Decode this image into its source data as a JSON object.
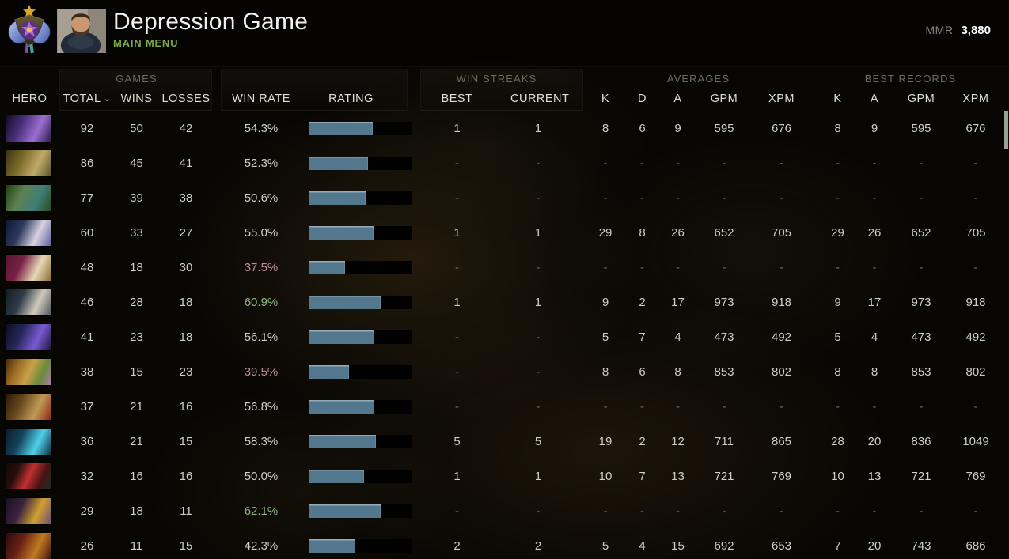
{
  "header": {
    "title": "Depression Game",
    "subtitle": "MAIN MENU",
    "mmr_label": "MMR",
    "mmr_value": "3,880"
  },
  "table": {
    "groups": {
      "games": "GAMES",
      "win_streaks": "WIN STREAKS",
      "averages": "AVERAGES",
      "best_records": "BEST RECORDS"
    },
    "columns": {
      "hero": "HERO",
      "total": "TOTAL",
      "sort_icon": "⌄",
      "wins": "WINS",
      "losses": "LOSSES",
      "win_rate": "WIN RATE",
      "rating": "RATING",
      "best": "BEST",
      "current": "CURRENT",
      "k": "K",
      "d": "D",
      "a": "A",
      "gpm": "GPM",
      "xpm": "XPM"
    },
    "rows": [
      {
        "hero": "faceless-void",
        "hero_colors": [
          "#120b26",
          "#4a2f7a",
          "#9a6fd0",
          "#2a1a4a"
        ],
        "total": "92",
        "wins": "50",
        "losses": "42",
        "win_rate": "54.3%",
        "win_rate_color": "normal",
        "bar_pct": 62,
        "best": "1",
        "current": "1",
        "k": "8",
        "d": "6",
        "a": "9",
        "gpm": "595",
        "xpm": "676",
        "rk": "8",
        "ra": "9",
        "rgpm": "595",
        "rxpm": "676"
      },
      {
        "hero": "pudge",
        "hero_colors": [
          "#3a3414",
          "#7a6a2a",
          "#c0aa6a",
          "#56512a"
        ],
        "total": "86",
        "wins": "45",
        "losses": "41",
        "win_rate": "52.3%",
        "win_rate_color": "normal",
        "bar_pct": 58,
        "best": "-",
        "current": "-",
        "k": "-",
        "d": "-",
        "a": "-",
        "gpm": "-",
        "xpm": "-",
        "rk": "-",
        "ra": "-",
        "rgpm": "-",
        "rxpm": "-"
      },
      {
        "hero": "natures-prophet",
        "hero_colors": [
          "#24400f",
          "#5d8050",
          "#3f7f78",
          "#2c4a1d"
        ],
        "total": "77",
        "wins": "39",
        "losses": "38",
        "win_rate": "50.6%",
        "win_rate_color": "normal",
        "bar_pct": 55,
        "best": "-",
        "current": "-",
        "k": "-",
        "d": "-",
        "a": "-",
        "gpm": "-",
        "xpm": "-",
        "rk": "-",
        "ra": "-",
        "rgpm": "-",
        "rxpm": "-"
      },
      {
        "hero": "mirana",
        "hero_colors": [
          "#0e1830",
          "#2c3a5e",
          "#d9d2e2",
          "#5a5d9a"
        ],
        "total": "60",
        "wins": "33",
        "losses": "27",
        "win_rate": "55.0%",
        "win_rate_color": "normal",
        "bar_pct": 63,
        "best": "1",
        "current": "1",
        "k": "29",
        "d": "8",
        "a": "26",
        "gpm": "652",
        "xpm": "705",
        "rk": "29",
        "ra": "26",
        "rgpm": "652",
        "rxpm": "705"
      },
      {
        "hero": "invoker",
        "hero_colors": [
          "#55152f",
          "#7a2244",
          "#e8d8b8",
          "#8a6a2a"
        ],
        "total": "48",
        "wins": "18",
        "losses": "30",
        "win_rate": "37.5%",
        "win_rate_color": "red",
        "bar_pct": 35,
        "best": "-",
        "current": "-",
        "k": "-",
        "d": "-",
        "a": "-",
        "gpm": "-",
        "xpm": "-",
        "rk": "-",
        "ra": "-",
        "rgpm": "-",
        "rxpm": "-"
      },
      {
        "hero": "juggernaut",
        "hero_colors": [
          "#131c24",
          "#2e3c48",
          "#cfc9bb",
          "#4a5258"
        ],
        "total": "46",
        "wins": "28",
        "losses": "18",
        "win_rate": "60.9%",
        "win_rate_color": "green",
        "bar_pct": 70,
        "best": "1",
        "current": "1",
        "k": "9",
        "d": "2",
        "a": "17",
        "gpm": "973",
        "xpm": "918",
        "rk": "9",
        "ra": "17",
        "rgpm": "973",
        "rxpm": "918"
      },
      {
        "hero": "enigma",
        "hero_colors": [
          "#0d0d22",
          "#26265a",
          "#7a5ad0",
          "#1c1440"
        ],
        "total": "41",
        "wins": "23",
        "losses": "18",
        "win_rate": "56.1%",
        "win_rate_color": "normal",
        "bar_pct": 64,
        "best": "-",
        "current": "-",
        "k": "5",
        "d": "7",
        "a": "4",
        "gpm": "473",
        "xpm": "492",
        "rk": "5",
        "ra": "4",
        "rgpm": "473",
        "rxpm": "492"
      },
      {
        "hero": "alchemist",
        "hero_colors": [
          "#4a2a0c",
          "#9a6a22",
          "#caa04a",
          "#6a8a3a",
          "#b07ab0"
        ],
        "total": "38",
        "wins": "15",
        "losses": "23",
        "win_rate": "39.5%",
        "win_rate_color": "red",
        "bar_pct": 39,
        "best": "-",
        "current": "-",
        "k": "8",
        "d": "6",
        "a": "8",
        "gpm": "853",
        "xpm": "802",
        "rk": "8",
        "ra": "8",
        "rgpm": "853",
        "rxpm": "802"
      },
      {
        "hero": "earthshaker",
        "hero_colors": [
          "#2c1a08",
          "#6a4a1e",
          "#c09a55",
          "#8a2418"
        ],
        "total": "37",
        "wins": "21",
        "losses": "16",
        "win_rate": "56.8%",
        "win_rate_color": "normal",
        "bar_pct": 64,
        "best": "-",
        "current": "-",
        "k": "-",
        "d": "-",
        "a": "-",
        "gpm": "-",
        "xpm": "-",
        "rk": "-",
        "ra": "-",
        "rgpm": "-",
        "rxpm": "-"
      },
      {
        "hero": "storm-spirit",
        "hero_colors": [
          "#0a1c2a",
          "#15445c",
          "#4fd0e8",
          "#0e2a3c"
        ],
        "total": "36",
        "wins": "21",
        "losses": "15",
        "win_rate": "58.3%",
        "win_rate_color": "normal",
        "bar_pct": 65,
        "best": "5",
        "current": "5",
        "k": "19",
        "d": "2",
        "a": "12",
        "gpm": "711",
        "xpm": "865",
        "rk": "28",
        "ra": "20",
        "rgpm": "836",
        "rxpm": "1049"
      },
      {
        "hero": "shadow-fiend",
        "hero_colors": [
          "#120808",
          "#2a0d0d",
          "#c03030",
          "#4a1212",
          "#143028"
        ],
        "total": "32",
        "wins": "16",
        "losses": "16",
        "win_rate": "50.0%",
        "win_rate_color": "normal",
        "bar_pct": 54,
        "best": "1",
        "current": "1",
        "k": "10",
        "d": "7",
        "a": "13",
        "gpm": "721",
        "xpm": "769",
        "rk": "10",
        "ra": "13",
        "rgpm": "721",
        "rxpm": "769"
      },
      {
        "hero": "silencer",
        "hero_colors": [
          "#1c1022",
          "#3a2240",
          "#d0a030",
          "#6a4a7a"
        ],
        "total": "29",
        "wins": "18",
        "losses": "11",
        "win_rate": "62.1%",
        "win_rate_color": "green",
        "bar_pct": 70,
        "best": "-",
        "current": "-",
        "k": "-",
        "d": "-",
        "a": "-",
        "gpm": "-",
        "xpm": "-",
        "rk": "-",
        "ra": "-",
        "rgpm": "-",
        "rxpm": "-"
      },
      {
        "hero": "bounty-hunter",
        "hero_colors": [
          "#2a0c0c",
          "#6a2014",
          "#c07a20",
          "#3a1410"
        ],
        "total": "26",
        "wins": "11",
        "losses": "15",
        "win_rate": "42.3%",
        "win_rate_color": "normal",
        "bar_pct": 45,
        "best": "2",
        "current": "2",
        "k": "5",
        "d": "4",
        "a": "15",
        "gpm": "692",
        "xpm": "653",
        "rk": "7",
        "ra": "20",
        "rgpm": "743",
        "rxpm": "686"
      }
    ]
  },
  "colors": {
    "bar_fill": "#53788e",
    "win_rate_green": "#8fb583",
    "win_rate_red": "#c48d92",
    "subtitle_green": "#7daa45"
  }
}
